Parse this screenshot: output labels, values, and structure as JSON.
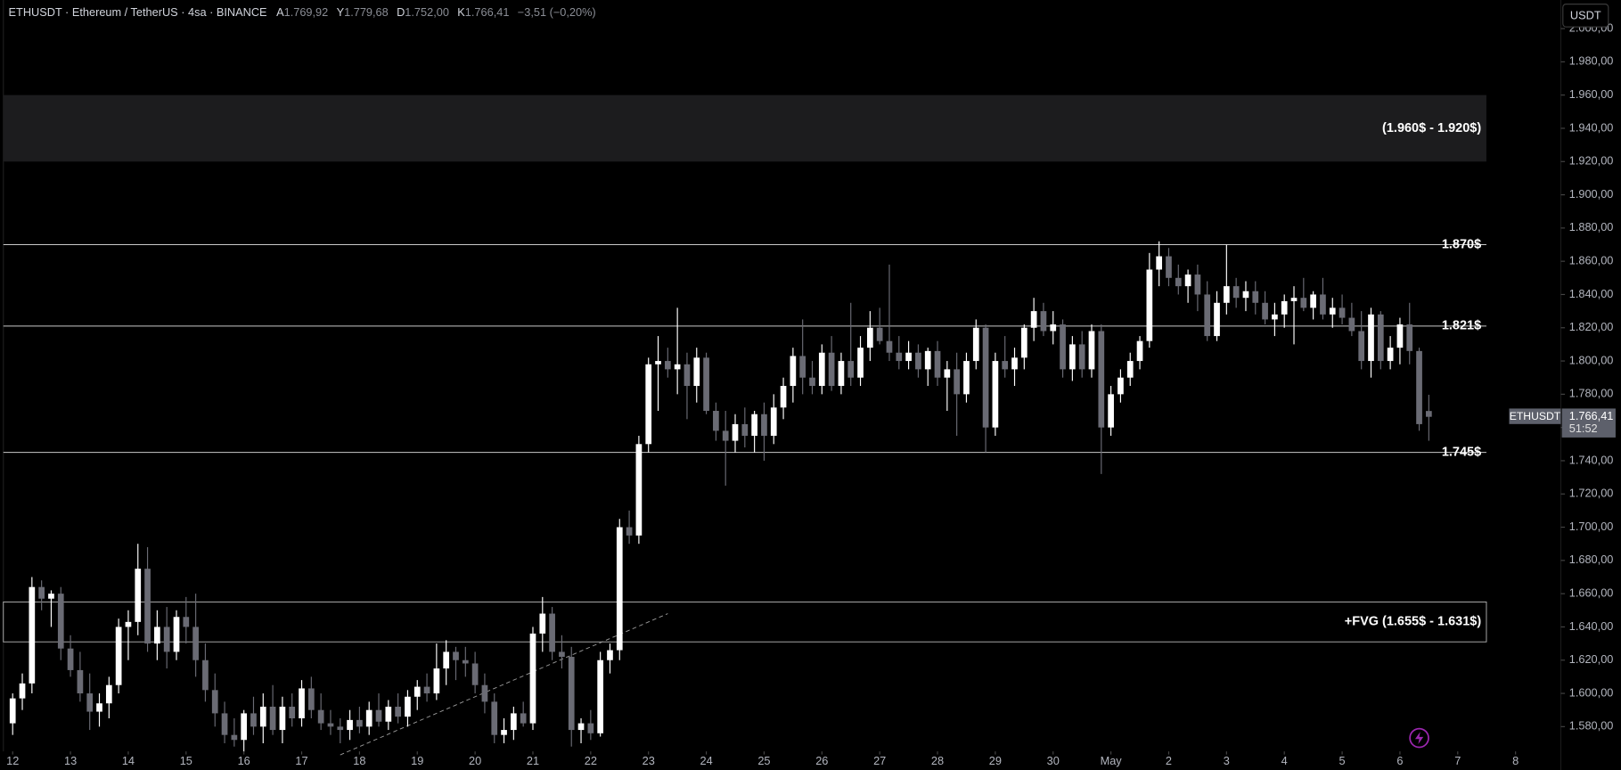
{
  "chart_data": {
    "type": "candlestick",
    "header": {
      "symbol": "ETHUSDT · Ethereum / TetherUS · 4sa · BINANCE",
      "ohlc": [
        {
          "key": "A",
          "value": "1.769,92"
        },
        {
          "key": "Y",
          "value": "1.779,68"
        },
        {
          "key": "D",
          "value": "1.752,00"
        },
        {
          "key": "K",
          "value": "1.766,41"
        }
      ],
      "change": "−3,51 (−0,20%)"
    },
    "currency": "USDT",
    "colors": {
      "up": "#ffffff",
      "down": "#6a6b74"
    },
    "ylim": [
      1565.1,
      2017.2
    ],
    "yticks": [
      {
        "value": 1580,
        "label": "1.580,00"
      },
      {
        "value": 1600,
        "label": "1.600,00"
      },
      {
        "value": 1620,
        "label": "1.620,00"
      },
      {
        "value": 1640,
        "label": "1.640,00"
      },
      {
        "value": 1660,
        "label": "1.660,00"
      },
      {
        "value": 1680,
        "label": "1.680,00"
      },
      {
        "value": 1700,
        "label": "1.700,00"
      },
      {
        "value": 1720,
        "label": "1.720,00"
      },
      {
        "value": 1740,
        "label": "1.740,00"
      },
      {
        "value": 1760,
        "label": "1.760,00"
      },
      {
        "value": 1780,
        "label": "1.780,00"
      },
      {
        "value": 1800,
        "label": "1.800,00"
      },
      {
        "value": 1820,
        "label": "1.820,00"
      },
      {
        "value": 1840,
        "label": "1.840,00"
      },
      {
        "value": 1860,
        "label": "1.860,00"
      },
      {
        "value": 1880,
        "label": "1.880,00"
      },
      {
        "value": 1900,
        "label": "1.900,00"
      },
      {
        "value": 1920,
        "label": "1.920,00"
      },
      {
        "value": 1940,
        "label": "1.940,00"
      },
      {
        "value": 1960,
        "label": "1.960,00"
      },
      {
        "value": 1980,
        "label": "1.980,00"
      },
      {
        "value": 2000,
        "label": "2.000,00"
      }
    ],
    "xlim": [
      -1.29,
      160.7
    ],
    "xticks": [
      {
        "value": 0,
        "label": "12"
      },
      {
        "value": 6,
        "label": "13"
      },
      {
        "value": 12,
        "label": "14"
      },
      {
        "value": 18,
        "label": "15"
      },
      {
        "value": 24,
        "label": "16"
      },
      {
        "value": 30,
        "label": "17"
      },
      {
        "value": 36,
        "label": "18"
      },
      {
        "value": 42,
        "label": "19"
      },
      {
        "value": 48,
        "label": "20"
      },
      {
        "value": 54,
        "label": "21"
      },
      {
        "value": 60,
        "label": "22"
      },
      {
        "value": 66,
        "label": "23"
      },
      {
        "value": 72,
        "label": "24"
      },
      {
        "value": 78,
        "label": "25"
      },
      {
        "value": 84,
        "label": "26"
      },
      {
        "value": 90,
        "label": "27"
      },
      {
        "value": 96,
        "label": "28"
      },
      {
        "value": 102,
        "label": "29"
      },
      {
        "value": 108,
        "label": "30"
      },
      {
        "value": 114,
        "label": "May"
      },
      {
        "value": 120,
        "label": "2"
      },
      {
        "value": 126,
        "label": "3"
      },
      {
        "value": 132,
        "label": "4"
      },
      {
        "value": 138,
        "label": "5"
      },
      {
        "value": 144,
        "label": "6"
      },
      {
        "value": 150,
        "label": "7"
      },
      {
        "value": 156,
        "label": "8"
      }
    ],
    "candles": [
      [
        1582,
        1600,
        1575,
        1597
      ],
      [
        1597,
        1612,
        1590,
        1606
      ],
      [
        1606,
        1670,
        1600,
        1664
      ],
      [
        1664,
        1668,
        1650,
        1657
      ],
      [
        1657,
        1662,
        1640,
        1660
      ],
      [
        1660,
        1664,
        1620,
        1627
      ],
      [
        1627,
        1635,
        1610,
        1614
      ],
      [
        1614,
        1625,
        1595,
        1600
      ],
      [
        1600,
        1612,
        1578,
        1589
      ],
      [
        1589,
        1600,
        1580,
        1594
      ],
      [
        1594,
        1610,
        1585,
        1605
      ],
      [
        1605,
        1645,
        1600,
        1640
      ],
      [
        1640,
        1650,
        1620,
        1643
      ],
      [
        1643,
        1690,
        1635,
        1675
      ],
      [
        1675,
        1688,
        1625,
        1630
      ],
      [
        1630,
        1650,
        1620,
        1640
      ],
      [
        1640,
        1652,
        1615,
        1625
      ],
      [
        1625,
        1650,
        1620,
        1646
      ],
      [
        1646,
        1658,
        1630,
        1640
      ],
      [
        1640,
        1660,
        1610,
        1620
      ],
      [
        1620,
        1630,
        1595,
        1602
      ],
      [
        1602,
        1612,
        1580,
        1588
      ],
      [
        1588,
        1595,
        1570,
        1575
      ],
      [
        1575,
        1585,
        1568,
        1572
      ],
      [
        1572,
        1590,
        1565,
        1588
      ],
      [
        1588,
        1598,
        1575,
        1580
      ],
      [
        1580,
        1600,
        1570,
        1592
      ],
      [
        1592,
        1605,
        1575,
        1578
      ],
      [
        1578,
        1598,
        1570,
        1592
      ],
      [
        1592,
        1600,
        1580,
        1585
      ],
      [
        1585,
        1608,
        1580,
        1603
      ],
      [
        1603,
        1610,
        1585,
        1590
      ],
      [
        1590,
        1600,
        1578,
        1582
      ],
      [
        1582,
        1590,
        1575,
        1580
      ],
      [
        1580,
        1585,
        1570,
        1578
      ],
      [
        1578,
        1590,
        1572,
        1584
      ],
      [
        1584,
        1592,
        1576,
        1580
      ],
      [
        1580,
        1595,
        1575,
        1590
      ],
      [
        1590,
        1600,
        1580,
        1583
      ],
      [
        1583,
        1596,
        1578,
        1592
      ],
      [
        1592,
        1600,
        1582,
        1586
      ],
      [
        1586,
        1602,
        1580,
        1598
      ],
      [
        1598,
        1608,
        1590,
        1604
      ],
      [
        1604,
        1612,
        1595,
        1600
      ],
      [
        1600,
        1630,
        1596,
        1615
      ],
      [
        1615,
        1632,
        1605,
        1625
      ],
      [
        1625,
        1628,
        1608,
        1620
      ],
      [
        1620,
        1628,
        1610,
        1618
      ],
      [
        1618,
        1625,
        1600,
        1605
      ],
      [
        1605,
        1612,
        1588,
        1595
      ],
      [
        1595,
        1600,
        1570,
        1575
      ],
      [
        1575,
        1585,
        1570,
        1578
      ],
      [
        1578,
        1592,
        1572,
        1588
      ],
      [
        1588,
        1595,
        1580,
        1582
      ],
      [
        1582,
        1640,
        1578,
        1636
      ],
      [
        1636,
        1658,
        1625,
        1648
      ],
      [
        1648,
        1652,
        1620,
        1625
      ],
      [
        1625,
        1635,
        1615,
        1622
      ],
      [
        1622,
        1628,
        1568,
        1578
      ],
      [
        1578,
        1585,
        1570,
        1582
      ],
      [
        1582,
        1590,
        1572,
        1576
      ],
      [
        1576,
        1625,
        1574,
        1620
      ],
      [
        1620,
        1630,
        1612,
        1626
      ],
      [
        1626,
        1705,
        1620,
        1700
      ],
      [
        1700,
        1710,
        1690,
        1695
      ],
      [
        1695,
        1755,
        1690,
        1750
      ],
      [
        1750,
        1802,
        1745,
        1798
      ],
      [
        1798,
        1815,
        1770,
        1800
      ],
      [
        1800,
        1808,
        1790,
        1795
      ],
      [
        1795,
        1832,
        1780,
        1798
      ],
      [
        1798,
        1805,
        1765,
        1785
      ],
      [
        1785,
        1808,
        1775,
        1802
      ],
      [
        1802,
        1805,
        1768,
        1770
      ],
      [
        1770,
        1775,
        1752,
        1758
      ],
      [
        1758,
        1770,
        1725,
        1752
      ],
      [
        1752,
        1768,
        1745,
        1762
      ],
      [
        1762,
        1772,
        1748,
        1755
      ],
      [
        1755,
        1770,
        1745,
        1768
      ],
      [
        1768,
        1775,
        1740,
        1755
      ],
      [
        1755,
        1780,
        1750,
        1772
      ],
      [
        1772,
        1790,
        1765,
        1785
      ],
      [
        1785,
        1808,
        1775,
        1803
      ],
      [
        1803,
        1825,
        1780,
        1790
      ],
      [
        1790,
        1800,
        1780,
        1785
      ],
      [
        1785,
        1810,
        1780,
        1805
      ],
      [
        1805,
        1815,
        1782,
        1785
      ],
      [
        1785,
        1805,
        1780,
        1800
      ],
      [
        1800,
        1835,
        1785,
        1790
      ],
      [
        1790,
        1815,
        1785,
        1808
      ],
      [
        1808,
        1830,
        1800,
        1820
      ],
      [
        1820,
        1832,
        1810,
        1812
      ],
      [
        1812,
        1858,
        1800,
        1805
      ],
      [
        1805,
        1815,
        1795,
        1800
      ],
      [
        1800,
        1812,
        1795,
        1805
      ],
      [
        1805,
        1810,
        1790,
        1795
      ],
      [
        1795,
        1808,
        1785,
        1806
      ],
      [
        1806,
        1812,
        1785,
        1790
      ],
      [
        1790,
        1800,
        1770,
        1795
      ],
      [
        1795,
        1805,
        1755,
        1780
      ],
      [
        1780,
        1805,
        1775,
        1800
      ],
      [
        1800,
        1825,
        1795,
        1820
      ],
      [
        1820,
        1822,
        1745,
        1760
      ],
      [
        1760,
        1805,
        1755,
        1800
      ],
      [
        1800,
        1815,
        1790,
        1795
      ],
      [
        1795,
        1808,
        1785,
        1802
      ],
      [
        1802,
        1822,
        1795,
        1820
      ],
      [
        1820,
        1838,
        1812,
        1830
      ],
      [
        1830,
        1835,
        1815,
        1818
      ],
      [
        1818,
        1830,
        1810,
        1822
      ],
      [
        1822,
        1825,
        1790,
        1795
      ],
      [
        1795,
        1815,
        1788,
        1810
      ],
      [
        1810,
        1818,
        1790,
        1795
      ],
      [
        1795,
        1822,
        1790,
        1818
      ],
      [
        1818,
        1822,
        1732,
        1760
      ],
      [
        1760,
        1785,
        1755,
        1780
      ],
      [
        1780,
        1795,
        1775,
        1790
      ],
      [
        1790,
        1805,
        1785,
        1800
      ],
      [
        1800,
        1815,
        1795,
        1812
      ],
      [
        1812,
        1865,
        1808,
        1855
      ],
      [
        1855,
        1872,
        1845,
        1863
      ],
      [
        1863,
        1868,
        1845,
        1850
      ],
      [
        1850,
        1858,
        1840,
        1845
      ],
      [
        1845,
        1855,
        1835,
        1852
      ],
      [
        1852,
        1858,
        1830,
        1840
      ],
      [
        1840,
        1848,
        1812,
        1815
      ],
      [
        1815,
        1842,
        1812,
        1835
      ],
      [
        1835,
        1870,
        1828,
        1845
      ],
      [
        1845,
        1850,
        1832,
        1838
      ],
      [
        1838,
        1848,
        1830,
        1842
      ],
      [
        1842,
        1848,
        1828,
        1835
      ],
      [
        1835,
        1842,
        1822,
        1825
      ],
      [
        1825,
        1835,
        1815,
        1828
      ],
      [
        1828,
        1840,
        1820,
        1836
      ],
      [
        1836,
        1845,
        1810,
        1838
      ],
      [
        1838,
        1850,
        1830,
        1832
      ],
      [
        1832,
        1842,
        1825,
        1840
      ],
      [
        1840,
        1850,
        1825,
        1828
      ],
      [
        1828,
        1838,
        1820,
        1832
      ],
      [
        1832,
        1840,
        1822,
        1826
      ],
      [
        1826,
        1835,
        1815,
        1818
      ],
      [
        1818,
        1830,
        1795,
        1800
      ],
      [
        1800,
        1832,
        1790,
        1828
      ],
      [
        1828,
        1830,
        1795,
        1800
      ],
      [
        1800,
        1815,
        1795,
        1808
      ],
      [
        1808,
        1826,
        1798,
        1822
      ],
      [
        1822,
        1835,
        1798,
        1806
      ],
      [
        1806,
        1808,
        1758,
        1762
      ],
      [
        1769.92,
        1779.68,
        1752,
        1766.41
      ]
    ],
    "levels": [
      {
        "value": 1870,
        "label": "1.870$"
      },
      {
        "value": 1821,
        "label": "1.821$"
      },
      {
        "value": 1745,
        "label": "1.745$"
      }
    ],
    "zones": [
      {
        "from": 1960,
        "to": 1920,
        "label": "(1.960$ - 1.920$)",
        "style": "fill"
      },
      {
        "from": 1655,
        "to": 1631,
        "label": "+FVG (1.655$ - 1.631$)",
        "style": "outline"
      }
    ],
    "trendline": {
      "x": [
        34,
        68
      ],
      "y": [
        1563,
        1648
      ]
    },
    "last_price": {
      "symbol": "ETHUSDT",
      "value": 1766.41,
      "label": "1.766,41",
      "countdown": "51:52"
    }
  }
}
